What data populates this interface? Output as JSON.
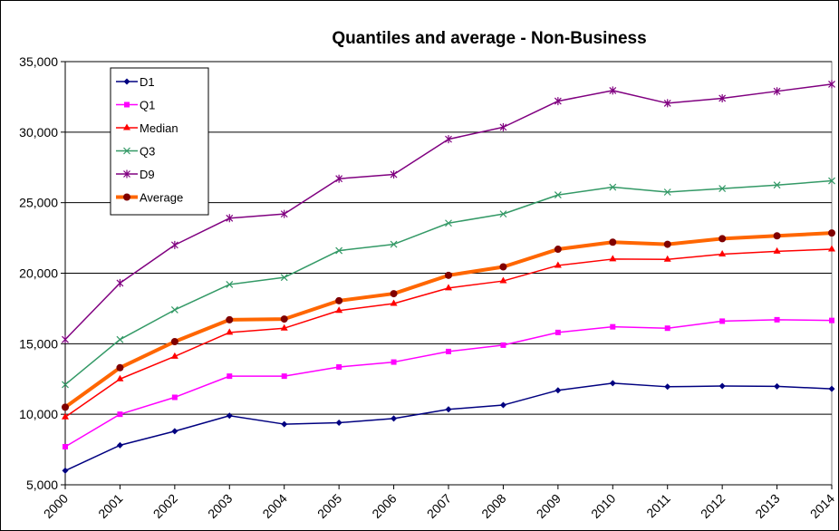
{
  "chart_data": {
    "type": "line",
    "title": "Quantiles and average - Non-Business",
    "xlabel": "",
    "ylabel": "",
    "x": [
      "2000",
      "2001",
      "2002",
      "2003",
      "2004",
      "2005",
      "2006",
      "2007",
      "2008",
      "2009",
      "2010",
      "2011",
      "2012",
      "2013",
      "2014"
    ],
    "ylim": [
      5000,
      35000
    ],
    "yticks": [
      5000,
      10000,
      15000,
      20000,
      25000,
      30000,
      35000
    ],
    "ytick_labels": [
      "5,000",
      "10,000",
      "15,000",
      "20,000",
      "25,000",
      "30,000",
      "35,000"
    ],
    "grid": "horizontal",
    "legend_position": "top-left",
    "series": [
      {
        "name": "D1",
        "color": "#000080",
        "marker": "diamond",
        "values": [
          6000,
          7800,
          8800,
          9900,
          9300,
          9400,
          9700,
          10350,
          10650,
          11700,
          12200,
          11950,
          12000,
          11980,
          11800
        ]
      },
      {
        "name": "Q1",
        "color": "#ff00ff",
        "marker": "square",
        "values": [
          7700,
          10000,
          11200,
          12700,
          12700,
          13350,
          13700,
          14450,
          14900,
          15800,
          16200,
          16100,
          16600,
          16700,
          16650
        ]
      },
      {
        "name": "Median",
        "color": "#ff0000",
        "marker": "triangle",
        "values": [
          9800,
          12500,
          14100,
          15800,
          16100,
          17350,
          17850,
          18950,
          19450,
          20550,
          21000,
          20980,
          21350,
          21550,
          21700
        ]
      },
      {
        "name": "Q3",
        "color": "#339966",
        "marker": "x",
        "values": [
          12100,
          15300,
          17400,
          19200,
          19700,
          21600,
          22050,
          23550,
          24200,
          25550,
          26100,
          25750,
          26000,
          26250,
          26550
        ]
      },
      {
        "name": "D9",
        "color": "#800080",
        "marker": "star",
        "values": [
          15300,
          19300,
          22000,
          23900,
          24200,
          26700,
          27000,
          29500,
          30350,
          32200,
          32950,
          32050,
          32400,
          32900,
          33400
        ]
      },
      {
        "name": "Average",
        "color": "#ff6600",
        "marker_color": "#800000",
        "marker": "circle",
        "thick": true,
        "values": [
          10500,
          13300,
          15150,
          16700,
          16750,
          18050,
          18550,
          19850,
          20450,
          21700,
          22200,
          22050,
          22450,
          22650,
          22850
        ]
      }
    ]
  }
}
